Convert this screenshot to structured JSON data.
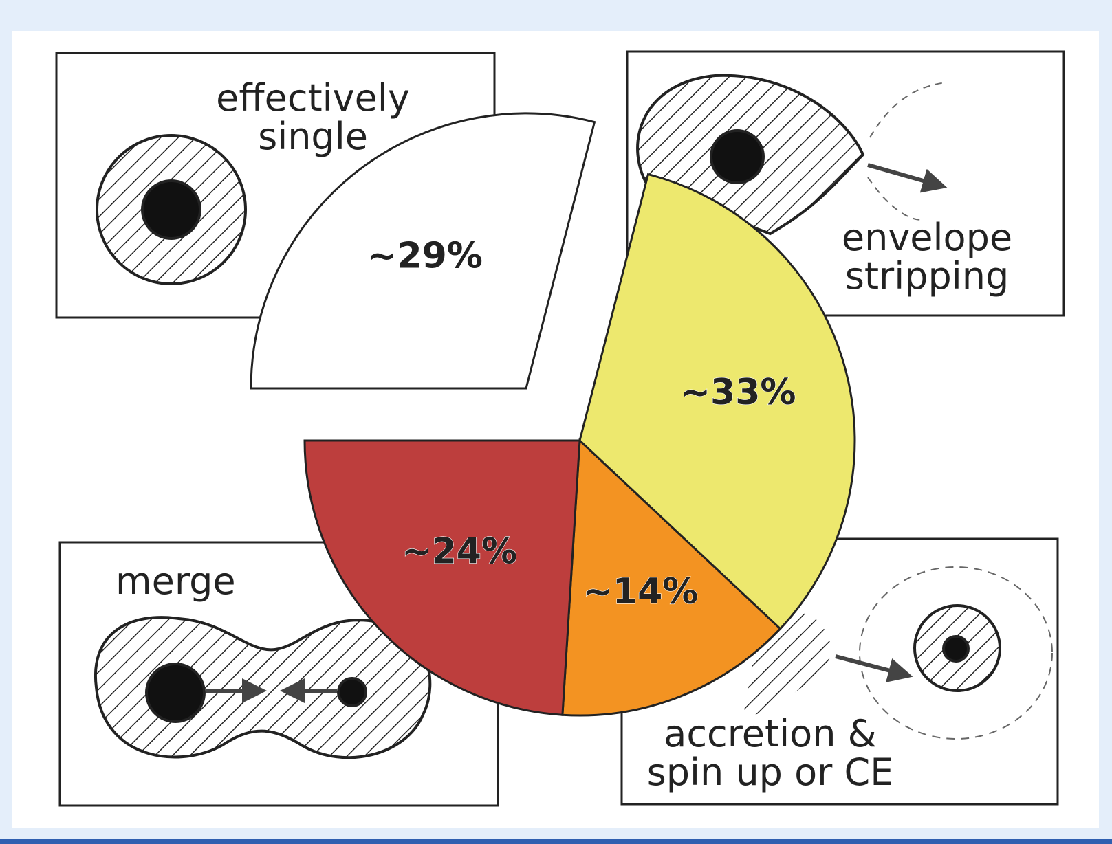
{
  "chart_data": {
    "type": "pie",
    "categories": [
      "envelope\nstripping",
      "accretion &\nspin up or CE",
      "merge",
      "effectively\nsingle"
    ],
    "values": [
      33,
      14,
      24,
      29
    ],
    "value_labels": [
      "~33%",
      "~14%",
      "~24%",
      "~29%"
    ],
    "colors": [
      "#ede86e",
      "#f39322",
      "#bd3e3d",
      "#ffffff"
    ]
  }
}
